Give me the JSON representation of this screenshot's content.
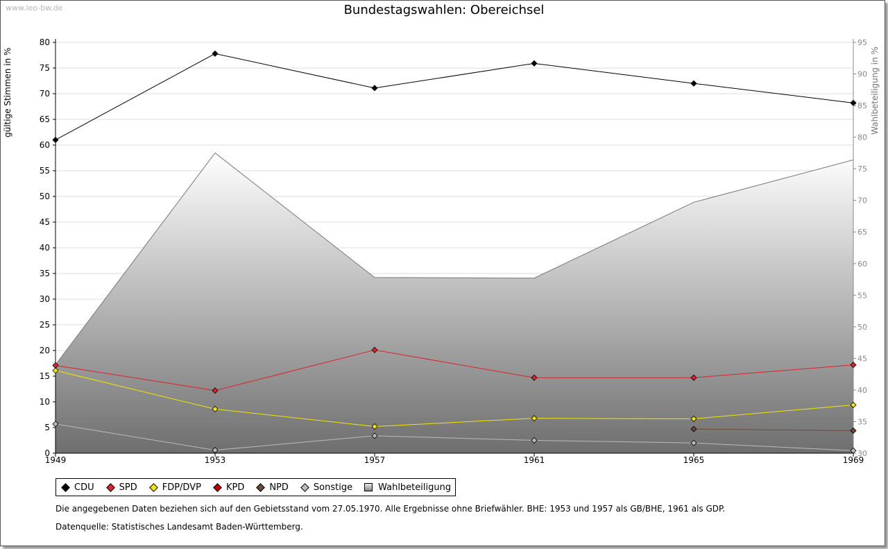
{
  "watermark": "www.leo-bw.de",
  "chart_data": {
    "type": "line",
    "title": "Bundestagswahlen: Obereichsel",
    "ylabel": "gültige Stimmen in %",
    "ylabel_right": "Wahlbeteiligung in %",
    "x": [
      "1949",
      "1953",
      "1957",
      "1961",
      "1965",
      "1969"
    ],
    "ylim": [
      0,
      80
    ],
    "ylim_right": [
      30,
      95
    ],
    "yticks": [
      0,
      5,
      10,
      15,
      20,
      25,
      30,
      35,
      40,
      45,
      50,
      55,
      60,
      65,
      70,
      75,
      80
    ],
    "yticks_right": [
      30,
      35,
      40,
      45,
      50,
      55,
      60,
      65,
      70,
      75,
      80,
      85,
      90,
      95
    ],
    "grid": true,
    "legend_position": "bottom-left",
    "series": [
      {
        "name": "CDU",
        "color": "#000000",
        "values": [
          61.0,
          77.8,
          71.1,
          75.9,
          72.0,
          68.2
        ]
      },
      {
        "name": "SPD",
        "color": "#e0202a",
        "values": [
          17.1,
          12.2,
          20.1,
          14.7,
          14.7,
          17.2
        ]
      },
      {
        "name": "FDP/DVP",
        "color": "#f2e600",
        "values": [
          16.1,
          8.6,
          5.2,
          6.8,
          6.7,
          9.4
        ]
      },
      {
        "name": "KPD",
        "color": "#c00000",
        "values": [
          null,
          null,
          null,
          null,
          null,
          null
        ]
      },
      {
        "name": "NPD",
        "color": "#6b4a3a",
        "values": [
          null,
          null,
          null,
          null,
          4.7,
          4.4
        ]
      },
      {
        "name": "Sonstige",
        "color": "#bbbbbb",
        "values": [
          5.7,
          0.6,
          3.4,
          2.5,
          2.0,
          0.5
        ]
      },
      {
        "name": "Wahlbeteiligung",
        "color": "#999999",
        "axis": "right",
        "type": "area",
        "values": [
          44.0,
          77.5,
          57.8,
          57.7,
          69.7,
          76.4
        ]
      }
    ]
  },
  "notes": {
    "line1": "Die angegebenen Daten beziehen sich auf den Gebietsstand vom 27.05.1970. Alle Ergebnisse ohne Briefwähler. BHE: 1953 und 1957 als GB/BHE, 1961 als GDP.",
    "line2": "Datenquelle: Statistisches Landesamt Baden-Württemberg."
  }
}
